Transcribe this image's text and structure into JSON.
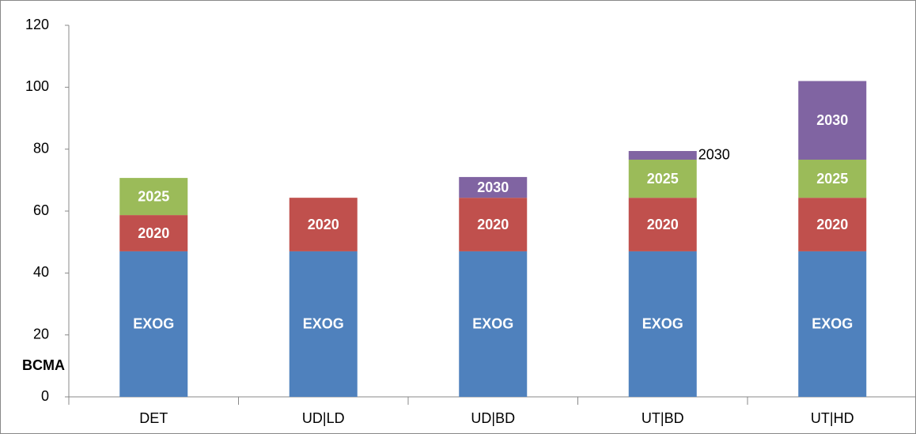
{
  "chart_data": {
    "type": "stacked-bar",
    "y_label": "BCMA",
    "categories": [
      "DET",
      "UD|LD",
      "UD|BD",
      "UT|BD",
      "UT|HD"
    ],
    "series": [
      {
        "name": "EXOG",
        "color": "#4f81bd",
        "values": [
          47,
          47,
          47,
          47,
          47
        ]
      },
      {
        "name": "2020",
        "color": "#c0504d",
        "values": [
          11.7,
          17.3,
          17.3,
          17.3,
          17.3
        ]
      },
      {
        "name": "2025",
        "color": "#9bbb59",
        "values": [
          12,
          null,
          null,
          12.3,
          12.3
        ]
      },
      {
        "name": "2030",
        "color": "#8064a2",
        "values": [
          null,
          null,
          6.7,
          2.8,
          25.4
        ]
      }
    ],
    "ylim": [
      0,
      120
    ],
    "yticks": [
      0,
      20,
      40,
      60,
      80,
      100,
      120
    ],
    "grid": false
  }
}
